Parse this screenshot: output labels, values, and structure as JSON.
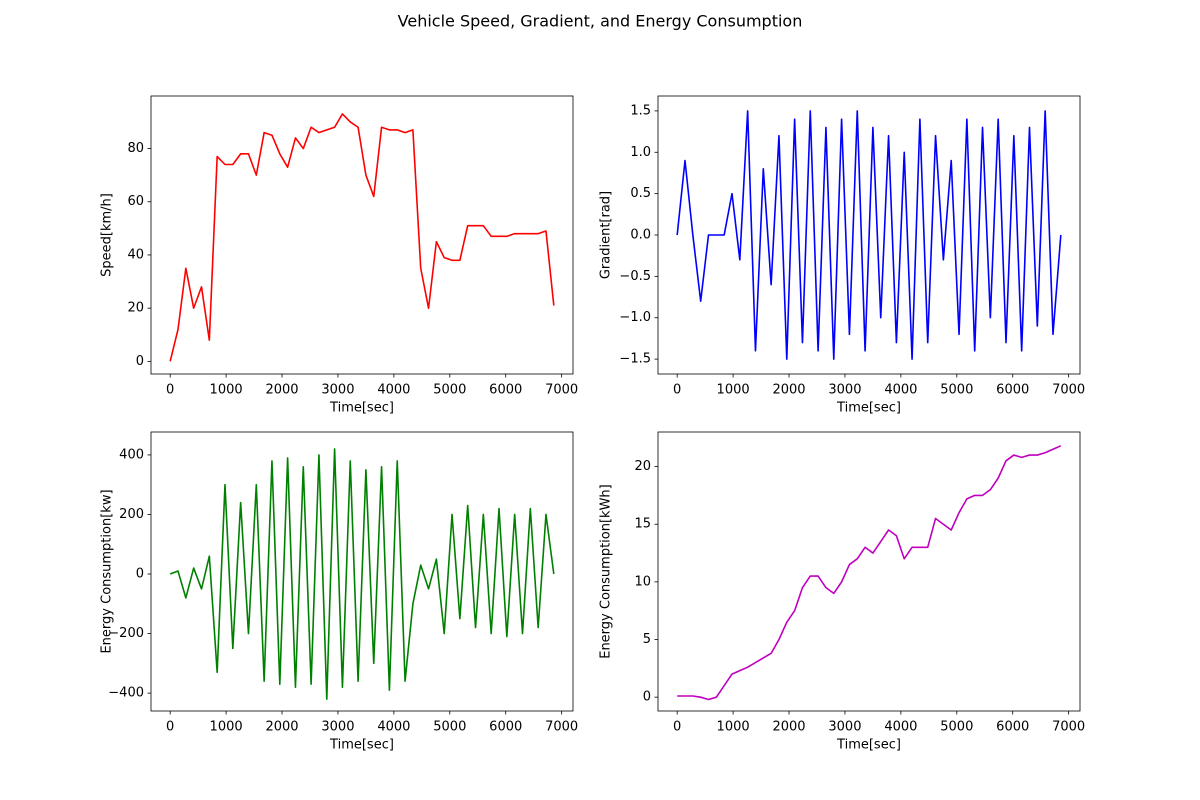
{
  "title": "Vehicle Speed, Gradient, and Energy Consumption",
  "chart_data": [
    {
      "type": "line",
      "xlabel": "Time[sec]",
      "ylabel": "Speed[km/h]",
      "color": "#ff0000",
      "x": [
        0,
        140,
        280,
        420,
        560,
        700,
        840,
        980,
        1120,
        1260,
        1400,
        1540,
        1680,
        1820,
        1960,
        2100,
        2240,
        2380,
        2520,
        2660,
        2800,
        2940,
        3080,
        3220,
        3360,
        3500,
        3640,
        3780,
        3920,
        4060,
        4200,
        4340,
        4480,
        4620,
        4760,
        4900,
        5040,
        5180,
        5320,
        5460,
        5600,
        5740,
        5880,
        6020,
        6160,
        6300,
        6440,
        6580,
        6720,
        6860
      ],
      "values": [
        0,
        12,
        35,
        20,
        28,
        8,
        77,
        74,
        74,
        78,
        78,
        70,
        86,
        85,
        78,
        73,
        84,
        80,
        88,
        86,
        87,
        88,
        93,
        90,
        88,
        70,
        62,
        88,
        87,
        87,
        86,
        87,
        35,
        20,
        45,
        39,
        38,
        38,
        51,
        51,
        51,
        47,
        47,
        47,
        48,
        48,
        48,
        48,
        49,
        21
      ],
      "xlim": [
        -343,
        7203
      ],
      "xticks": [
        0,
        1000,
        2000,
        3000,
        4000,
        5000,
        6000,
        7000
      ],
      "ylim": [
        -4.75,
        99.75
      ],
      "yticks": [
        0,
        20,
        40,
        60,
        80
      ]
    },
    {
      "type": "line",
      "xlabel": "Time[sec]",
      "ylabel": "Gradient[rad]",
      "color": "#0000ff",
      "x": [
        0,
        140,
        280,
        420,
        560,
        700,
        840,
        980,
        1120,
        1260,
        1400,
        1540,
        1680,
        1820,
        1960,
        2100,
        2240,
        2380,
        2520,
        2660,
        2800,
        2940,
        3080,
        3220,
        3360,
        3500,
        3640,
        3780,
        3920,
        4060,
        4200,
        4340,
        4480,
        4620,
        4760,
        4900,
        5040,
        5180,
        5320,
        5460,
        5600,
        5740,
        5880,
        6020,
        6160,
        6300,
        6440,
        6580,
        6720,
        6860
      ],
      "values": [
        0,
        0.9,
        0,
        -0.8,
        0,
        0,
        0,
        0.5,
        -0.3,
        1.5,
        -1.4,
        0.8,
        -0.6,
        1.2,
        -1.5,
        1.4,
        -1.3,
        1.5,
        -1.4,
        1.3,
        -1.5,
        1.4,
        -1.2,
        1.5,
        -1.4,
        1.3,
        -1.0,
        1.2,
        -1.3,
        1.0,
        -1.5,
        1.4,
        -1.3,
        1.2,
        -0.3,
        0.9,
        -1.2,
        1.4,
        -1.4,
        1.3,
        -1.0,
        1.4,
        -1.3,
        1.2,
        -1.4,
        1.3,
        -1.1,
        1.5,
        -1.2,
        0
      ],
      "xlim": [
        -343,
        7203
      ],
      "xticks": [
        0,
        1000,
        2000,
        3000,
        4000,
        5000,
        6000,
        7000
      ],
      "ylim": [
        -1.68,
        1.68
      ],
      "yticks": [
        {
          "value": -1.5,
          "label": "−1.5"
        },
        {
          "value": -1,
          "label": "−1.0"
        },
        {
          "value": -0.5,
          "label": "−0.5"
        },
        {
          "value": 0,
          "label": "0.0"
        },
        0.5,
        {
          "value": 1,
          "label": "1.0"
        },
        1.5
      ]
    },
    {
      "type": "line",
      "xlabel": "Time[sec]",
      "ylabel": "Energy Consumption[kw]",
      "color": "#008000",
      "x": [
        0,
        140,
        280,
        420,
        560,
        700,
        840,
        980,
        1120,
        1260,
        1400,
        1540,
        1680,
        1820,
        1960,
        2100,
        2240,
        2380,
        2520,
        2660,
        2800,
        2940,
        3080,
        3220,
        3360,
        3500,
        3640,
        3780,
        3920,
        4060,
        4200,
        4340,
        4480,
        4620,
        4760,
        4900,
        5040,
        5180,
        5320,
        5460,
        5600,
        5740,
        5880,
        6020,
        6160,
        6300,
        6440,
        6580,
        6720,
        6860
      ],
      "values": [
        0,
        10,
        -80,
        20,
        -50,
        60,
        -330,
        300,
        -250,
        240,
        -200,
        300,
        -360,
        380,
        -370,
        390,
        -380,
        360,
        -370,
        400,
        -420,
        420,
        -380,
        380,
        -360,
        350,
        -300,
        360,
        -390,
        380,
        -360,
        -100,
        30,
        -50,
        50,
        -200,
        200,
        -150,
        230,
        -180,
        200,
        -200,
        220,
        -210,
        200,
        -200,
        220,
        -180,
        200,
        0
      ],
      "xlim": [
        -343,
        7203
      ],
      "xticks": [
        0,
        1000,
        2000,
        3000,
        4000,
        5000,
        6000,
        7000
      ],
      "ylim": [
        -460,
        477
      ],
      "yticks": [
        {
          "value": -400,
          "label": "−400"
        },
        {
          "value": -200,
          "label": "−200"
        },
        0,
        200,
        400
      ]
    },
    {
      "type": "line",
      "xlabel": "Time[sec]",
      "ylabel": "Energy Consumption[kWh]",
      "color": "#bf00bf",
      "x": [
        0,
        140,
        280,
        420,
        560,
        700,
        840,
        980,
        1120,
        1260,
        1400,
        1540,
        1680,
        1820,
        1960,
        2100,
        2240,
        2380,
        2520,
        2660,
        2800,
        2940,
        3080,
        3220,
        3360,
        3500,
        3640,
        3780,
        3920,
        4060,
        4200,
        4340,
        4480,
        4620,
        4760,
        4900,
        5040,
        5180,
        5320,
        5460,
        5600,
        5740,
        5880,
        6020,
        6160,
        6300,
        6440,
        6580,
        6720,
        6860
      ],
      "values": [
        0.1,
        0.1,
        0.1,
        0,
        -0.2,
        0,
        1,
        2,
        2.3,
        2.6,
        3,
        3.4,
        3.8,
        5,
        6.5,
        7.5,
        9.5,
        10.5,
        10.5,
        9.5,
        9,
        10,
        11.5,
        12,
        13,
        12.5,
        13.5,
        14.5,
        14,
        12,
        13,
        13,
        13,
        15.5,
        15,
        14.5,
        16,
        17.2,
        17.5,
        17.5,
        18,
        19,
        20.5,
        21,
        20.8,
        21,
        21,
        21.2,
        21.5,
        21.8
      ],
      "xlim": [
        -343,
        7203
      ],
      "xticks": [
        0,
        1000,
        2000,
        3000,
        4000,
        5000,
        6000,
        7000
      ],
      "ylim": [
        -1.2,
        23
      ],
      "yticks": [
        0,
        5,
        10,
        15,
        20
      ]
    }
  ]
}
